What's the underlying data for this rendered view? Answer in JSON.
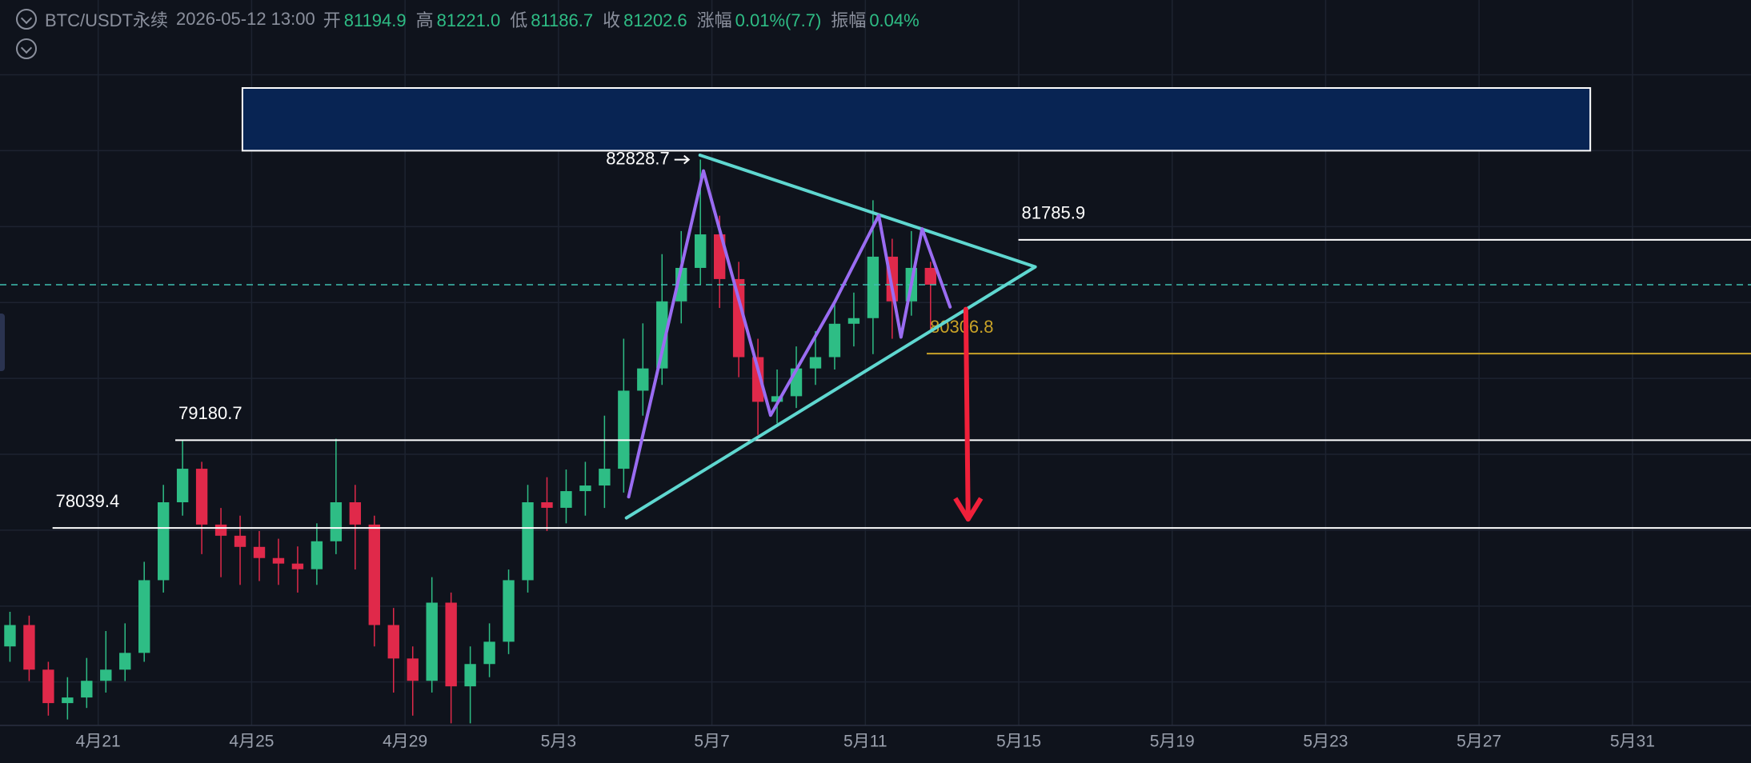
{
  "header": {
    "symbol": "BTC/USDT永续",
    "time": "2026-05-12 13:00",
    "fields": [
      {
        "label": "开",
        "value": "81194.9"
      },
      {
        "label": "高",
        "value": "81221.0"
      },
      {
        "label": "低",
        "value": "81186.7"
      },
      {
        "label": "收",
        "value": "81202.6"
      },
      {
        "label": "涨幅",
        "value": "0.01%(7.7)"
      },
      {
        "label": "振幅",
        "value": "0.04%"
      }
    ]
  },
  "chart_data": {
    "type": "candlestick",
    "xlim": [
      18.44,
      64.09
    ],
    "ylim": [
      75473,
      84904
    ],
    "xticks": [
      {
        "value": 21,
        "label": "4月21"
      },
      {
        "value": 25,
        "label": "4月25"
      },
      {
        "value": 29,
        "label": "4月29"
      },
      {
        "value": 33,
        "label": "5月3"
      },
      {
        "value": 37,
        "label": "5月7"
      },
      {
        "value": 41,
        "label": "5月11"
      },
      {
        "value": 45,
        "label": "5月15"
      },
      {
        "value": 49,
        "label": "5月19"
      },
      {
        "value": 53,
        "label": "5月23"
      },
      {
        "value": 57,
        "label": "5月27"
      },
      {
        "value": 61,
        "label": "5月31"
      }
    ],
    "ygrid": [
      83932,
      82945,
      81958,
      80971,
      79985,
      78998,
      78011,
      77024,
      76038
    ],
    "up_color": "#2ebd85",
    "down_color": "#e0294a",
    "x": [
      18.7,
      19.2,
      19.7,
      20.2,
      20.7,
      21.2,
      21.7,
      22.2,
      22.7,
      23.2,
      23.7,
      24.2,
      24.7,
      25.2,
      25.7,
      26.2,
      26.7,
      27.2,
      27.7,
      28.2,
      28.7,
      29.2,
      29.7,
      30.2,
      30.7,
      31.2,
      31.7,
      32.2,
      32.7,
      33.2,
      33.7,
      34.2,
      34.7,
      35.2,
      35.7,
      36.2,
      36.7,
      37.2,
      37.7,
      38.2,
      38.7,
      39.2,
      39.7,
      40.2,
      40.7,
      41.2,
      41.7,
      42.2,
      42.7
    ],
    "open": [
      76500,
      76778,
      76198,
      75763,
      75836,
      76053,
      76198,
      76416,
      77361,
      78374,
      78810,
      78084,
      77939,
      77794,
      77649,
      77577,
      77504,
      77867,
      78374,
      78084,
      76778,
      76343,
      76053,
      77069,
      75981,
      76271,
      76561,
      77361,
      78374,
      78302,
      78519,
      78592,
      78810,
      79825,
      80114,
      80986,
      81421,
      81857,
      81276,
      80261,
      79680,
      79753,
      80114,
      80261,
      80695,
      80768,
      81567,
      80986,
      81421
    ],
    "high": [
      76950,
      76900,
      76300,
      76100,
      76350,
      76700,
      76800,
      77600,
      78600,
      79181,
      78900,
      78300,
      78200,
      78000,
      77900,
      77800,
      78100,
      79200,
      78600,
      78200,
      77000,
      76500,
      77400,
      77200,
      76500,
      76800,
      77500,
      78600,
      78700,
      78800,
      78900,
      79500,
      80500,
      80700,
      81600,
      81900,
      82829,
      82100,
      81500,
      80500,
      80100,
      80400,
      80600,
      81000,
      81100,
      82300,
      81800,
      81900,
      81500
    ],
    "low": [
      76300,
      76050,
      75600,
      75550,
      75700,
      75900,
      76050,
      76300,
      77200,
      78200,
      77700,
      77400,
      77300,
      77350,
      77300,
      77200,
      77300,
      77700,
      77500,
      76500,
      75900,
      75600,
      75900,
      75500,
      75500,
      76100,
      76400,
      77200,
      78000,
      78100,
      78200,
      78300,
      78500,
      79500,
      79900,
      80700,
      81200,
      80900,
      80000,
      79250,
      79400,
      79600,
      79900,
      80100,
      80400,
      80300,
      80500,
      80800,
      80600
    ],
    "close": [
      76778,
      76198,
      75763,
      75836,
      76053,
      76198,
      76416,
      77361,
      78374,
      78810,
      78084,
      77939,
      77794,
      77649,
      77577,
      77504,
      77867,
      78374,
      78084,
      76778,
      76343,
      76053,
      77069,
      75981,
      76271,
      76561,
      77361,
      78374,
      78302,
      78519,
      78592,
      78810,
      79825,
      80114,
      80986,
      81421,
      81857,
      81276,
      80261,
      79680,
      79753,
      80114,
      80261,
      80695,
      80768,
      81567,
      80986,
      81421,
      81203
    ],
    "last_price": 81202.6,
    "last_color": "#3fbfb0",
    "zone": {
      "x": [
        24.76,
        59.9
      ],
      "y": [
        82945,
        83760
      ],
      "color": "#082453"
    },
    "peak": {
      "x": 36.69,
      "value": 82828.7
    },
    "levels": [
      {
        "value": 81785.9,
        "from": 44.99,
        "color": "#ffffff"
      },
      {
        "value": 80306.8,
        "from": 42.6,
        "color": "#c9a227"
      },
      {
        "value": 79180.7,
        "from": 23.01,
        "color": "#ffffff"
      },
      {
        "value": 78039.4,
        "from": 19.81,
        "color": "#ffffff"
      }
    ],
    "triangle": {
      "x": [
        36.69,
        45.43,
        34.77
      ],
      "y": [
        82887,
        81435,
        78170
      ],
      "color": "#5fd7d0"
    },
    "zigzag": {
      "x": [
        34.83,
        36.78,
        38.53,
        40.21,
        41.35,
        41.93,
        42.48,
        43.21
      ],
      "y": [
        78445,
        82683,
        79505,
        80985,
        82103,
        80521,
        81929,
        80913
      ],
      "color": "#9a6cf2"
    },
    "arrow": {
      "x": [
        43.62,
        43.68
      ],
      "y": [
        80884,
        78155
      ],
      "color": "#f0203a"
    }
  }
}
